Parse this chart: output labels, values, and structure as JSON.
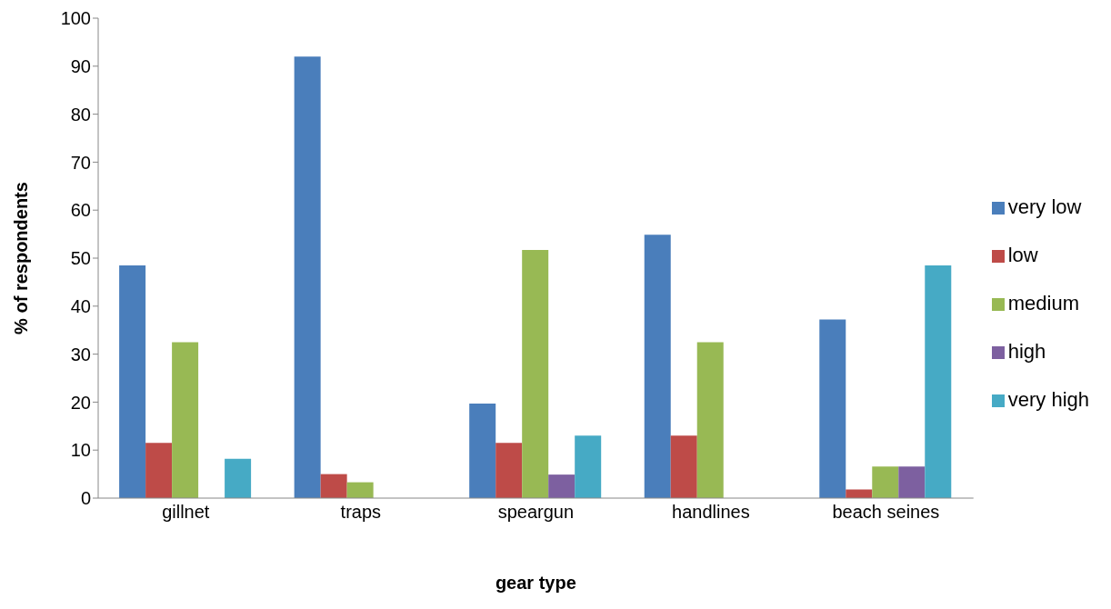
{
  "chart_data": {
    "type": "bar",
    "xlabel": "gear type",
    "ylabel": "% of respondents",
    "categories": [
      "gillnet",
      "traps",
      "speargun",
      "handlines",
      "beach seines"
    ],
    "series": [
      {
        "name": "very low",
        "color": "#4a7ebb",
        "values": [
          48.5,
          92,
          19.7,
          54.9,
          37.2
        ]
      },
      {
        "name": "low",
        "color": "#be4b48",
        "values": [
          11.5,
          5,
          11.5,
          13,
          1.8
        ]
      },
      {
        "name": "medium",
        "color": "#98b954",
        "values": [
          32.5,
          3.3,
          51.7,
          32.5,
          6.6
        ]
      },
      {
        "name": "high",
        "color": "#7d60a0",
        "values": [
          0,
          0,
          4.9,
          0,
          6.6
        ]
      },
      {
        "name": "very high",
        "color": "#46aac5",
        "values": [
          8.2,
          0,
          13,
          0,
          48.5
        ]
      }
    ],
    "ylim": [
      0,
      100
    ],
    "yticks": [
      0,
      10,
      20,
      30,
      40,
      50,
      60,
      70,
      80,
      90,
      100
    ],
    "grid": false,
    "legend": "right"
  }
}
